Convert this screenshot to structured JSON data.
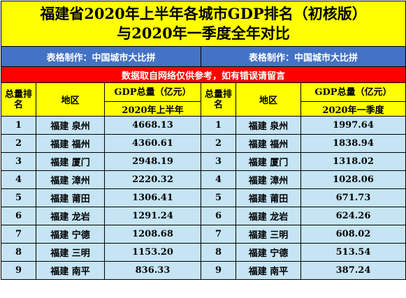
{
  "title_line1": "福建省2020年上半年各城市GDP排名（初核版）",
  "title_line2": "与2020年一季度全年对比",
  "maker_left": "表格制作：中国城市大比拼",
  "maker_right": "表格制作：中国城市大比拼",
  "notice": "数据取自网络仅供参考，如有错误请留言",
  "left_headers": {
    "rank": "总量排名",
    "region": "地区",
    "gdp": "GDP总量（亿元）",
    "period": "2020年上半年"
  },
  "right_headers": {
    "rank": "总量排名",
    "region": "地区",
    "gdp": "GDP总量（亿元）",
    "period": "2020年一季度"
  },
  "left_rows": [
    {
      "rank": "1",
      "region": "福建 泉州",
      "gdp": "4668.13"
    },
    {
      "rank": "2",
      "region": "福建 福州",
      "gdp": "4360.61"
    },
    {
      "rank": "3",
      "region": "福建 厦门",
      "gdp": "2948.19"
    },
    {
      "rank": "4",
      "region": "福建 漳州",
      "gdp": "2220.32"
    },
    {
      "rank": "5",
      "region": "福建 莆田",
      "gdp": "1306.41"
    },
    {
      "rank": "6",
      "region": "福建 龙岩",
      "gdp": "1291.24"
    },
    {
      "rank": "7",
      "region": "福建 宁德",
      "gdp": "1208.68"
    },
    {
      "rank": "8",
      "region": "福建 三明",
      "gdp": "1153.20"
    },
    {
      "rank": "9",
      "region": "福建 南平",
      "gdp": "836.33"
    }
  ],
  "right_rows": [
    {
      "rank": "1",
      "region": "福建 泉州",
      "gdp": "1997.64"
    },
    {
      "rank": "2",
      "region": "福建 福州",
      "gdp": "1838.94"
    },
    {
      "rank": "3",
      "region": "福建 厦门",
      "gdp": "1318.02"
    },
    {
      "rank": "4",
      "region": "福建 漳州",
      "gdp": "1028.06"
    },
    {
      "rank": "5",
      "region": "福建 莆田",
      "gdp": "671.73"
    },
    {
      "rank": "6",
      "region": "福建 龙岩",
      "gdp": "624.26"
    },
    {
      "rank": "7",
      "region": "福建 三明",
      "gdp": "608.02"
    },
    {
      "rank": "8",
      "region": "福建 宁德",
      "gdp": "513.54"
    },
    {
      "rank": "9",
      "region": "福建 南平",
      "gdp": "387.24"
    }
  ]
}
